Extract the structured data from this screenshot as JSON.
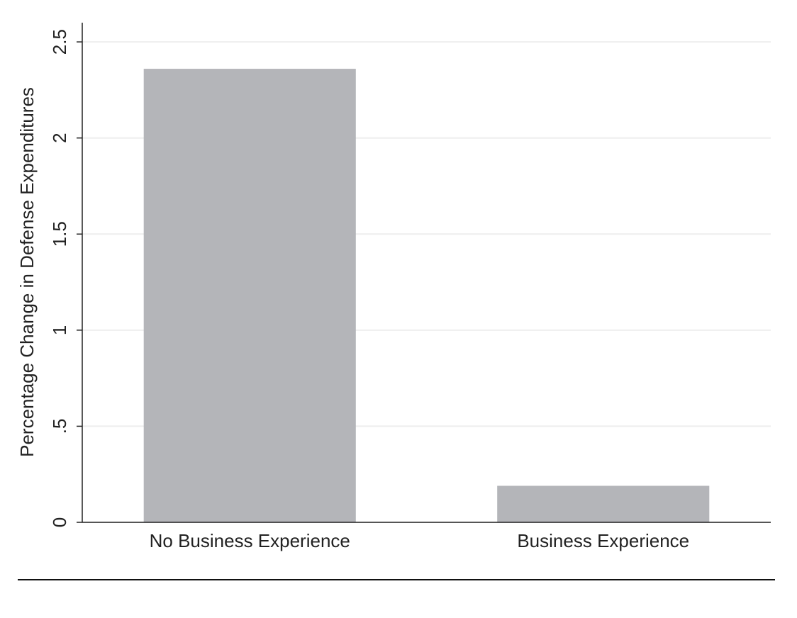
{
  "chart_data": {
    "type": "bar",
    "y_label": "Percentage Change in Defense Expenditures",
    "categories": [
      "No Business Experience",
      "Business Experience"
    ],
    "values": [
      2.36,
      0.19
    ],
    "color": "#b4b5b9",
    "ylim": [
      0,
      2.6
    ],
    "yticks": [
      0,
      {
        "value": 0.5,
        "label": ".5"
      },
      1,
      1.5,
      2,
      2.5
    ],
    "grid": true
  }
}
